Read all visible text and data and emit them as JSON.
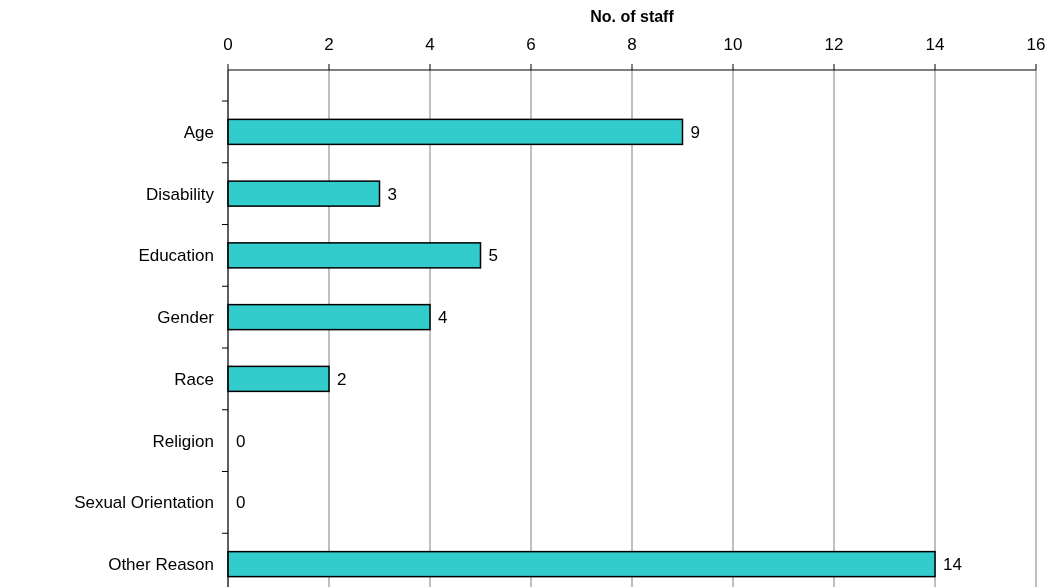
{
  "chart_data": {
    "type": "bar",
    "orientation": "horizontal",
    "xlabel": "No. of staff",
    "categories": [
      "Age",
      "Disability",
      "Education",
      "Gender",
      "Race",
      "Religion",
      "Sexual Orientation",
      "Other Reason"
    ],
    "values": [
      9,
      3,
      5,
      4,
      2,
      0,
      0,
      14
    ],
    "color": "#33cccc",
    "xlim": [
      0,
      16
    ],
    "xticks": [
      0,
      2,
      4,
      6,
      8,
      10,
      12,
      14,
      16
    ],
    "grid": "x",
    "data_labels": true
  }
}
